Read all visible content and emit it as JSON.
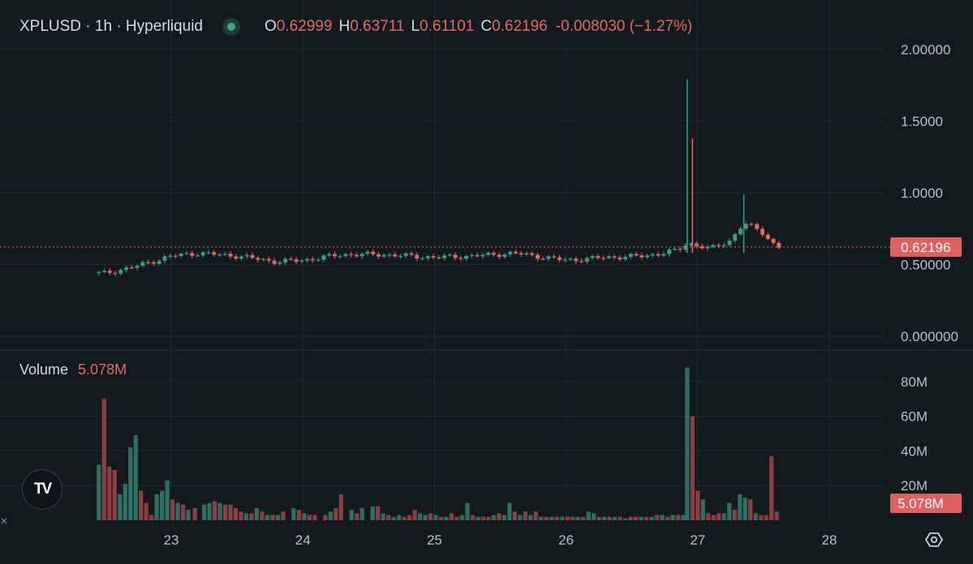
{
  "header": {
    "symbol": "XPLUSD · 1h · Hyperliquid",
    "open_label": "O",
    "open": "0.62999",
    "high_label": "H",
    "high": "0.63711",
    "low_label": "L",
    "low": "0.61101",
    "close_label": "C",
    "close": "0.62196",
    "change": "-0.008030 (−1.27%)"
  },
  "volume_legend": {
    "label": "Volume",
    "value": "5.078M"
  },
  "price_axis": {
    "ticks": [
      "2.00000",
      "1.5000",
      "1.0000",
      "0.50000",
      "0.000000"
    ],
    "current_price_label": "0.62196"
  },
  "volume_axis": {
    "ticks": [
      "80M",
      "60M",
      "40M",
      "20M"
    ],
    "current_volume_label": "5.078M"
  },
  "time_axis": {
    "ticks": [
      "23",
      "24",
      "25",
      "26",
      "27",
      "28"
    ]
  },
  "colors": {
    "up": "#3e9b85",
    "down": "#e06a6a",
    "background": "#131a1e"
  },
  "logo": "TV",
  "icons": {
    "settings": "settings-hexagon-icon"
  },
  "chart_data": [
    {
      "type": "candlestick",
      "interval": "1h",
      "x_axis": {
        "ticks": [
          "23",
          "24",
          "25",
          "26",
          "27",
          "28"
        ],
        "range": [
          "22",
          "28"
        ]
      },
      "y_axis": {
        "ticks": [
          2.0,
          1.5,
          1.0,
          0.5,
          0.0
        ],
        "range": [
          0,
          2.05
        ]
      },
      "current_price": 0.62196,
      "anchors": [
        {
          "x": 22.5,
          "y": 0.44
        },
        {
          "x": 22.7,
          "y": 0.48
        },
        {
          "x": 23.0,
          "y": 0.56
        },
        {
          "x": 23.2,
          "y": 0.58
        },
        {
          "x": 23.5,
          "y": 0.56
        },
        {
          "x": 23.8,
          "y": 0.52
        },
        {
          "x": 24.0,
          "y": 0.53
        },
        {
          "x": 24.3,
          "y": 0.57
        },
        {
          "x": 24.6,
          "y": 0.57
        },
        {
          "x": 25.0,
          "y": 0.55
        },
        {
          "x": 25.3,
          "y": 0.56
        },
        {
          "x": 25.6,
          "y": 0.58
        },
        {
          "x": 26.0,
          "y": 0.53
        },
        {
          "x": 26.3,
          "y": 0.55
        },
        {
          "x": 26.6,
          "y": 0.56
        },
        {
          "x": 26.85,
          "y": 0.6
        },
        {
          "x": 26.92,
          "y": 0.65
        },
        {
          "x": 27.1,
          "y": 0.61
        },
        {
          "x": 27.25,
          "y": 0.67
        },
        {
          "x": 27.35,
          "y": 0.79
        },
        {
          "x": 27.5,
          "y": 0.72
        },
        {
          "x": 27.6,
          "y": 0.62
        }
      ],
      "spikes": [
        {
          "x": 26.92,
          "high": 1.79,
          "up": true
        },
        {
          "x": 26.96,
          "high": 1.38,
          "up": false
        },
        {
          "x": 27.35,
          "high": 0.99,
          "up": true
        }
      ]
    },
    {
      "type": "bar",
      "name": "Volume",
      "y_axis": {
        "ticks": [
          80,
          60,
          40,
          20
        ],
        "unit": "M",
        "range": [
          0,
          90
        ]
      },
      "current_value": 5.078,
      "bars": [
        {
          "x": 22.45,
          "v": 32,
          "up": true
        },
        {
          "x": 22.49,
          "v": 70,
          "up": false
        },
        {
          "x": 22.53,
          "v": 31,
          "up": false
        },
        {
          "x": 22.57,
          "v": 29,
          "up": false
        },
        {
          "x": 22.61,
          "v": 15,
          "up": true
        },
        {
          "x": 22.65,
          "v": 21,
          "up": true
        },
        {
          "x": 22.69,
          "v": 42,
          "up": true
        },
        {
          "x": 22.73,
          "v": 49,
          "up": true
        },
        {
          "x": 22.77,
          "v": 17,
          "up": false
        },
        {
          "x": 22.81,
          "v": 10,
          "up": false
        },
        {
          "x": 22.85,
          "v": 3,
          "up": false
        },
        {
          "x": 22.89,
          "v": 15,
          "up": true
        },
        {
          "x": 22.93,
          "v": 17,
          "up": true
        },
        {
          "x": 22.97,
          "v": 23,
          "up": true
        },
        {
          "x": 23.01,
          "v": 12,
          "up": false
        },
        {
          "x": 23.05,
          "v": 10,
          "up": true
        },
        {
          "x": 23.09,
          "v": 9,
          "up": false
        },
        {
          "x": 23.13,
          "v": 6,
          "up": true
        },
        {
          "x": 23.18,
          "v": 7,
          "up": false
        },
        {
          "x": 23.25,
          "v": 9,
          "up": true
        },
        {
          "x": 23.29,
          "v": 10,
          "up": true
        },
        {
          "x": 23.33,
          "v": 11,
          "up": false
        },
        {
          "x": 23.37,
          "v": 10,
          "up": true
        },
        {
          "x": 23.41,
          "v": 9,
          "up": false
        },
        {
          "x": 23.45,
          "v": 9,
          "up": false
        },
        {
          "x": 23.49,
          "v": 7,
          "up": false
        },
        {
          "x": 23.53,
          "v": 5,
          "up": false
        },
        {
          "x": 23.57,
          "v": 4,
          "up": true
        },
        {
          "x": 23.61,
          "v": 4,
          "up": false
        },
        {
          "x": 23.65,
          "v": 7,
          "up": true
        },
        {
          "x": 23.69,
          "v": 5,
          "up": false
        },
        {
          "x": 23.73,
          "v": 3,
          "up": true
        },
        {
          "x": 23.77,
          "v": 3,
          "up": false
        },
        {
          "x": 23.81,
          "v": 3,
          "up": true
        },
        {
          "x": 23.85,
          "v": 5,
          "up": false
        },
        {
          "x": 23.93,
          "v": 7,
          "up": true
        },
        {
          "x": 23.97,
          "v": 6,
          "up": false
        },
        {
          "x": 24.01,
          "v": 4,
          "up": true
        },
        {
          "x": 24.05,
          "v": 3,
          "up": false
        },
        {
          "x": 24.09,
          "v": 3,
          "up": false
        },
        {
          "x": 24.17,
          "v": 3,
          "up": false
        },
        {
          "x": 24.21,
          "v": 5,
          "up": true
        },
        {
          "x": 24.25,
          "v": 7,
          "up": false
        },
        {
          "x": 24.29,
          "v": 15,
          "up": false
        },
        {
          "x": 24.37,
          "v": 6,
          "up": true
        },
        {
          "x": 24.41,
          "v": 4,
          "up": false
        },
        {
          "x": 24.45,
          "v": 7,
          "up": true
        },
        {
          "x": 24.53,
          "v": 8,
          "up": true
        },
        {
          "x": 24.57,
          "v": 8,
          "up": false
        },
        {
          "x": 24.61,
          "v": 4,
          "up": true
        },
        {
          "x": 24.65,
          "v": 3,
          "up": false
        },
        {
          "x": 24.69,
          "v": 2,
          "up": true
        },
        {
          "x": 24.73,
          "v": 3,
          "up": true
        },
        {
          "x": 24.77,
          "v": 2,
          "up": false
        },
        {
          "x": 24.81,
          "v": 3,
          "up": false
        },
        {
          "x": 24.85,
          "v": 6,
          "up": false
        },
        {
          "x": 24.89,
          "v": 4,
          "up": true
        },
        {
          "x": 24.93,
          "v": 3,
          "up": true
        },
        {
          "x": 24.97,
          "v": 4,
          "up": false
        },
        {
          "x": 25.01,
          "v": 3,
          "up": true
        },
        {
          "x": 25.05,
          "v": 2,
          "up": false
        },
        {
          "x": 25.09,
          "v": 2,
          "up": true
        },
        {
          "x": 25.13,
          "v": 4,
          "up": false
        },
        {
          "x": 25.17,
          "v": 2,
          "up": false
        },
        {
          "x": 25.21,
          "v": 3,
          "up": true
        },
        {
          "x": 25.25,
          "v": 10,
          "up": true
        },
        {
          "x": 25.29,
          "v": 3,
          "up": false
        },
        {
          "x": 25.33,
          "v": 2,
          "up": true
        },
        {
          "x": 25.37,
          "v": 2,
          "up": false
        },
        {
          "x": 25.41,
          "v": 2,
          "up": false
        },
        {
          "x": 25.45,
          "v": 3,
          "up": true
        },
        {
          "x": 25.49,
          "v": 4,
          "up": false
        },
        {
          "x": 25.53,
          "v": 3,
          "up": true
        },
        {
          "x": 25.57,
          "v": 10,
          "up": true
        },
        {
          "x": 25.61,
          "v": 5,
          "up": false
        },
        {
          "x": 25.65,
          "v": 3,
          "up": true
        },
        {
          "x": 25.69,
          "v": 5,
          "up": false
        },
        {
          "x": 25.73,
          "v": 3,
          "up": true
        },
        {
          "x": 25.77,
          "v": 5,
          "up": false
        },
        {
          "x": 25.81,
          "v": 2,
          "up": true
        },
        {
          "x": 25.85,
          "v": 2,
          "up": false
        },
        {
          "x": 25.89,
          "v": 2,
          "up": true
        },
        {
          "x": 25.93,
          "v": 2,
          "up": false
        },
        {
          "x": 25.97,
          "v": 2,
          "up": true
        },
        {
          "x": 26.01,
          "v": 2,
          "up": false
        },
        {
          "x": 26.05,
          "v": 2,
          "up": false
        },
        {
          "x": 26.09,
          "v": 2,
          "up": true
        },
        {
          "x": 26.13,
          "v": 2,
          "up": false
        },
        {
          "x": 26.17,
          "v": 5,
          "up": true
        },
        {
          "x": 26.21,
          "v": 4,
          "up": true
        },
        {
          "x": 26.25,
          "v": 2,
          "up": false
        },
        {
          "x": 26.29,
          "v": 2,
          "up": true
        },
        {
          "x": 26.33,
          "v": 2,
          "up": false
        },
        {
          "x": 26.37,
          "v": 2,
          "up": true
        },
        {
          "x": 26.41,
          "v": 2,
          "up": false
        },
        {
          "x": 26.45,
          "v": 1,
          "up": true
        },
        {
          "x": 26.49,
          "v": 2,
          "up": false
        },
        {
          "x": 26.53,
          "v": 2,
          "up": false
        },
        {
          "x": 26.57,
          "v": 2,
          "up": true
        },
        {
          "x": 26.61,
          "v": 2,
          "up": false
        },
        {
          "x": 26.65,
          "v": 2,
          "up": true
        },
        {
          "x": 26.69,
          "v": 3,
          "up": false
        },
        {
          "x": 26.73,
          "v": 3,
          "up": true
        },
        {
          "x": 26.77,
          "v": 2,
          "up": false
        },
        {
          "x": 26.81,
          "v": 3,
          "up": true
        },
        {
          "x": 26.85,
          "v": 3,
          "up": false
        },
        {
          "x": 26.89,
          "v": 3,
          "up": true
        },
        {
          "x": 26.92,
          "v": 88,
          "up": true
        },
        {
          "x": 26.96,
          "v": 60,
          "up": false
        },
        {
          "x": 27.0,
          "v": 17,
          "up": false
        },
        {
          "x": 27.04,
          "v": 12,
          "up": true
        },
        {
          "x": 27.08,
          "v": 4,
          "up": false
        },
        {
          "x": 27.12,
          "v": 3,
          "up": false
        },
        {
          "x": 27.16,
          "v": 4,
          "up": false
        },
        {
          "x": 27.2,
          "v": 4,
          "up": true
        },
        {
          "x": 27.24,
          "v": 10,
          "up": true
        },
        {
          "x": 27.28,
          "v": 6,
          "up": false
        },
        {
          "x": 27.32,
          "v": 15,
          "up": true
        },
        {
          "x": 27.36,
          "v": 13,
          "up": true
        },
        {
          "x": 27.4,
          "v": 12,
          "up": false
        },
        {
          "x": 27.44,
          "v": 4,
          "up": true
        },
        {
          "x": 27.48,
          "v": 3,
          "up": false
        },
        {
          "x": 27.52,
          "v": 3,
          "up": false
        },
        {
          "x": 27.56,
          "v": 37,
          "up": false
        },
        {
          "x": 27.6,
          "v": 5,
          "up": false
        }
      ]
    }
  ]
}
